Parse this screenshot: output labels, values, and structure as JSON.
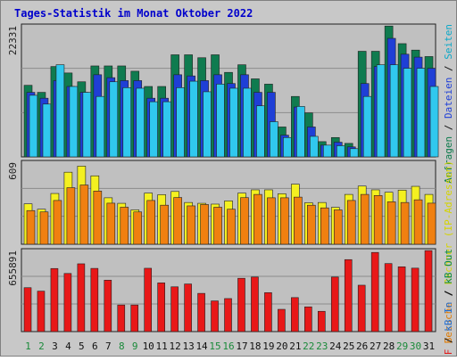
{
  "chart_data": {
    "type": "bar",
    "title": "Tages-Statistik im Monat Oktober 2022",
    "days": [
      "1",
      "2",
      "3",
      "4",
      "5",
      "6",
      "7",
      "8",
      "9",
      "10",
      "11",
      "12",
      "13",
      "14",
      "15",
      "16",
      "17",
      "18",
      "19",
      "20",
      "21",
      "22",
      "23",
      "24",
      "25",
      "26",
      "27",
      "28",
      "29",
      "30",
      "31"
    ],
    "weekend_days": [
      "1",
      "2",
      "8",
      "9",
      "15",
      "16",
      "22",
      "23",
      "29",
      "30"
    ],
    "panels": [
      {
        "id": "requests",
        "ymax_label": "22331",
        "ymax": 22331,
        "right_labels": [
          {
            "text": "Anfragen",
            "color": "#0a7a4a"
          },
          {
            "text": " / ",
            "color": "#101010"
          },
          {
            "text": "Dateien",
            "color": "#1e3fd8"
          },
          {
            "text": " / ",
            "color": "#101010"
          },
          {
            "text": "Seiten",
            "color": "#0aa8c8"
          }
        ],
        "series": [
          {
            "name": "Anfragen",
            "color": "#0f7b4f",
            "values": [
              12200,
              11000,
              15400,
              14300,
              12800,
              15500,
              15500,
              15500,
              14600,
              12000,
              12000,
              17400,
              17400,
              16900,
              17400,
              14400,
              15700,
              13300,
              12400,
              5100,
              10300,
              7500,
              2600,
              3300,
              2300,
              18000,
              18000,
              22300,
              19300,
              18200,
              17100
            ]
          },
          {
            "name": "Dateien",
            "color": "#1f3fd6",
            "values": [
              11000,
              10000,
              13000,
              12000,
              11000,
              14000,
              13500,
              13000,
              13000,
              10000,
              10000,
              14000,
              13800,
              13000,
              14000,
              12500,
              14000,
              11000,
              11000,
              3700,
              8500,
              5100,
              2000,
              2500,
              1700,
              12500,
              15400,
              20200,
              17500,
              17000,
              15100
            ]
          },
          {
            "name": "Seiten",
            "color": "#30c8ee",
            "values": [
              10500,
              9000,
              15700,
              12000,
              11000,
              10300,
              12800,
              11800,
              11700,
              9400,
              9400,
              11800,
              12900,
              11100,
              12400,
              11700,
              11700,
              8700,
              6000,
              3300,
              8600,
              3500,
              2000,
              1900,
              1400,
              10300,
              15700,
              15700,
              15100,
              15100,
              12000
            ]
          }
        ]
      },
      {
        "id": "visits",
        "ymax_label": "609",
        "ymax": 609,
        "right_labels": [
          {
            "text": "Besuche",
            "color": "#e07a00"
          },
          {
            "text": " / ",
            "color": "#101010"
          },
          {
            "text": "Rechner (IP-Adressen)",
            "color": "#d4d400"
          }
        ],
        "series": [
          {
            "name": "Rechner (IP-Adressen)",
            "color": "#f4f020",
            "values": [
              300,
              260,
              377,
              535,
              580,
              508,
              345,
              304,
              255,
              380,
              368,
              392,
              310,
              304,
              298,
              322,
              380,
              404,
              404,
              375,
              446,
              308,
              310,
              274,
              370,
              432,
              404,
              386,
              402,
              430,
              370
            ]
          },
          {
            "name": "Besuche",
            "color": "#f08010",
            "values": [
              250,
              240,
              325,
              420,
              440,
              395,
              305,
              275,
              240,
              325,
              290,
              347,
              285,
              295,
              275,
              260,
              346,
              370,
              345,
              345,
              350,
              290,
              270,
              255,
              325,
              370,
              362,
              315,
              310,
              330,
              305
            ]
          }
        ]
      },
      {
        "id": "kbytes",
        "ymax_label": "655891",
        "ymax": 655891,
        "right_labels": [
          {
            "text": "kB F",
            "color": "#e02020"
          },
          {
            "text": " / ",
            "color": "#101010"
          },
          {
            "text": "kB In",
            "color": "#1e6fd8"
          },
          {
            "text": " / ",
            "color": "#101010"
          },
          {
            "text": "kB Out",
            "color": "#0a8a4a"
          }
        ],
        "series": [
          {
            "name": "kB F",
            "color": "#e81818",
            "values": [
              355000,
              327000,
              510000,
              470000,
              548000,
              511000,
              416000,
              215000,
              215000,
              512000,
              394000,
              362000,
              385000,
              309000,
              248000,
              267000,
              431000,
              441000,
              315000,
              180000,
              275000,
              200000,
              164000,
              441000,
              582000,
              375000,
              640000,
              550000,
              524000,
              513000,
              655000
            ]
          }
        ]
      }
    ]
  }
}
